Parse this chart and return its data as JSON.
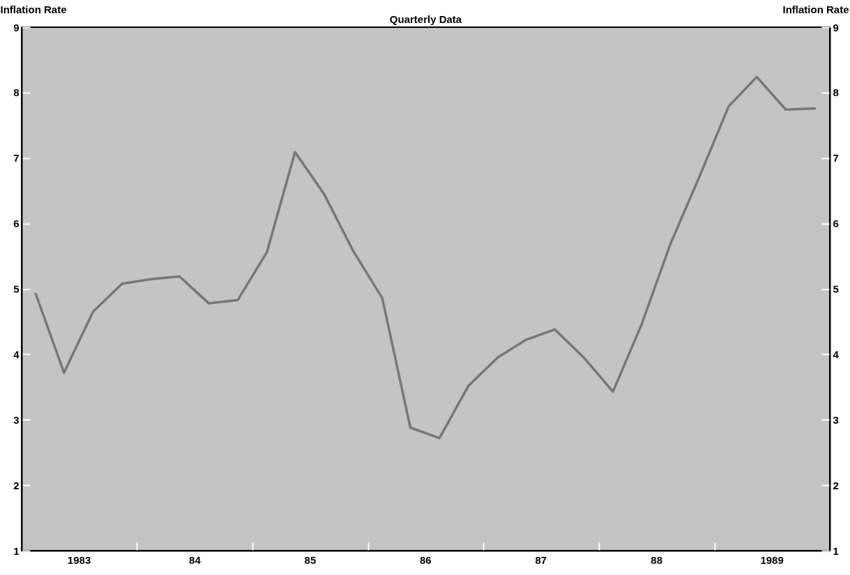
{
  "chart_data": {
    "type": "line",
    "title": "Quarterly Data",
    "ylabel": "Inflation Rate",
    "y2label": "Inflation Rate",
    "x": [
      "1983-02-15",
      "1983-05-15",
      "1983-08-15",
      "1983-11-15",
      "1984-02-15",
      "1984-05-15",
      "1984-08-15",
      "1984-11-15",
      "1985-02-15",
      "1985-05-15",
      "1985-08-15",
      "1985-11-15",
      "1986-02-15",
      "1986-05-15",
      "1986-08-15",
      "1986-11-15",
      "1987-02-15",
      "1987-05-15",
      "1987-08-15",
      "1987-11-15",
      "1988-02-15",
      "1988-05-15",
      "1988-08-15",
      "1988-11-15",
      "1989-02-15",
      "1989-05-15",
      "1989-08-15",
      "1989-11-15"
    ],
    "series": [
      {
        "color": "#777777",
        "values": [
          4.92,
          3.72,
          4.65,
          5.08,
          5.15,
          5.19,
          4.78,
          4.83,
          5.56,
          7.09,
          6.45,
          5.58,
          4.86,
          2.88,
          2.72,
          3.52,
          3.95,
          4.22,
          4.38,
          3.95,
          3.43,
          4.45,
          5.69,
          6.72,
          7.79,
          8.24,
          7.74,
          7.76
        ]
      }
    ],
    "xlim": [
      "1983-01-01",
      "1990-01-01"
    ],
    "xticks": [
      {
        "value": "1983-07-01",
        "label": "1983"
      },
      {
        "value": "1984-01-01",
        "label": null
      },
      {
        "value": "1984-07-01",
        "label": "84"
      },
      {
        "value": "1985-01-01",
        "label": null
      },
      {
        "value": "1985-07-01",
        "label": "85"
      },
      {
        "value": "1986-01-01",
        "label": null
      },
      {
        "value": "1986-07-01",
        "label": "86"
      },
      {
        "value": "1987-01-01",
        "label": null
      },
      {
        "value": "1987-07-01",
        "label": "87"
      },
      {
        "value": "1988-01-01",
        "label": null
      },
      {
        "value": "1988-07-01",
        "label": "88"
      },
      {
        "value": "1989-01-01",
        "label": null
      },
      {
        "value": "1989-07-01",
        "label": "1989"
      }
    ],
    "ylim": [
      1,
      9
    ],
    "yticks": [
      1,
      2,
      3,
      4,
      5,
      6,
      7,
      8,
      9
    ],
    "y2lim": [
      1,
      9
    ],
    "y2ticks": [
      1,
      2,
      3,
      4,
      5,
      6,
      7,
      8,
      9
    ],
    "grid": false,
    "line_style": "solid"
  }
}
